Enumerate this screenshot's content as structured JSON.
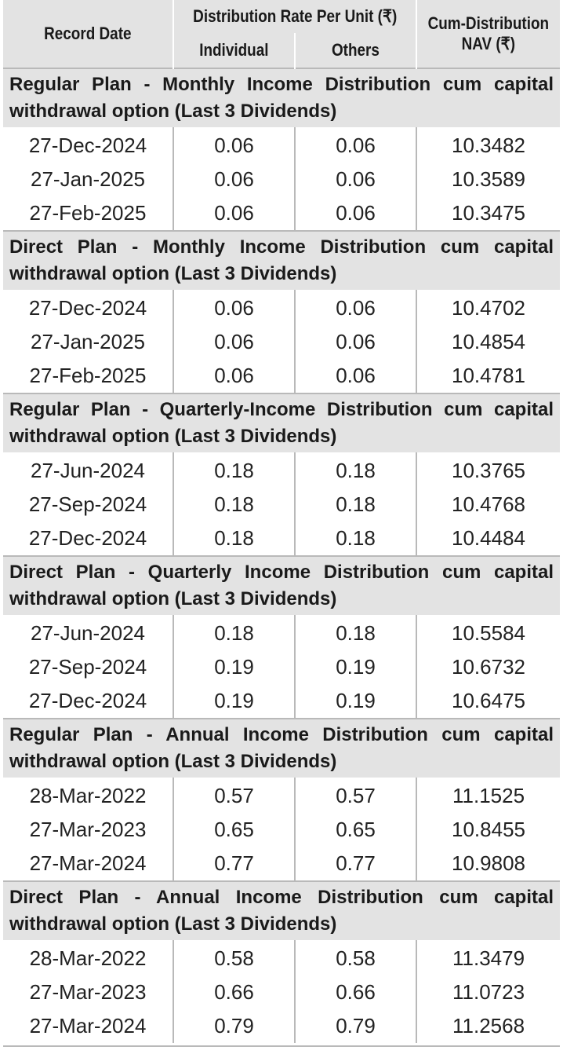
{
  "header": {
    "record_date": "Record Date",
    "rate_group": "Distribution Rate Per Unit  (₹)",
    "individual": "Individual",
    "others": "Others",
    "nav_line1": "Cum-Distribution",
    "nav_line2": "NAV (₹)"
  },
  "sections": [
    {
      "title": "Regular Plan - Monthly Income Distribution cum capital withdrawal option (Last 3 Dividends)",
      "rows": [
        {
          "date": "27-Dec-2024",
          "individual": "0.06",
          "others": "0.06",
          "nav": "10.3482"
        },
        {
          "date": "27-Jan-2025",
          "individual": "0.06",
          "others": "0.06",
          "nav": "10.3589"
        },
        {
          "date": "27-Feb-2025",
          "individual": "0.06",
          "others": "0.06",
          "nav": "10.3475"
        }
      ]
    },
    {
      "title": "Direct Plan - Monthly Income Distribution cum capital withdrawal option (Last 3 Dividends)",
      "rows": [
        {
          "date": "27-Dec-2024",
          "individual": "0.06",
          "others": "0.06",
          "nav": "10.4702"
        },
        {
          "date": "27-Jan-2025",
          "individual": "0.06",
          "others": "0.06",
          "nav": "10.4854"
        },
        {
          "date": "27-Feb-2025",
          "individual": "0.06",
          "others": "0.06",
          "nav": "10.4781"
        }
      ]
    },
    {
      "title": "Regular Plan - Quarterly-Income Distribution cum capital withdrawal option (Last 3 Dividends)",
      "rows": [
        {
          "date": "27-Jun-2024",
          "individual": "0.18",
          "others": "0.18",
          "nav": "10.3765"
        },
        {
          "date": "27-Sep-2024",
          "individual": "0.18",
          "others": "0.18",
          "nav": "10.4768"
        },
        {
          "date": "27-Dec-2024",
          "individual": "0.18",
          "others": "0.18",
          "nav": "10.4484"
        }
      ]
    },
    {
      "title": "Direct Plan - Quarterly Income Distribution cum capital withdrawal option (Last 3 Dividends)",
      "rows": [
        {
          "date": "27-Jun-2024",
          "individual": "0.18",
          "others": "0.18",
          "nav": "10.5584"
        },
        {
          "date": "27-Sep-2024",
          "individual": "0.19",
          "others": "0.19",
          "nav": "10.6732"
        },
        {
          "date": "27-Dec-2024",
          "individual": "0.19",
          "others": "0.19",
          "nav": "10.6475"
        }
      ]
    },
    {
      "title": "Regular Plan - Annual Income Distribution cum capital withdrawal option (Last 3 Dividends)",
      "rows": [
        {
          "date": "28-Mar-2022",
          "individual": "0.57",
          "others": "0.57",
          "nav": "11.1525"
        },
        {
          "date": "27-Mar-2023",
          "individual": "0.65",
          "others": "0.65",
          "nav": "10.8455"
        },
        {
          "date": "27-Mar-2024",
          "individual": "0.77",
          "others": "0.77",
          "nav": "10.9808"
        }
      ]
    },
    {
      "title": "Direct Plan - Annual Income Distribution cum capital withdrawal option (Last 3 Dividends)",
      "rows": [
        {
          "date": "28-Mar-2022",
          "individual": "0.58",
          "others": "0.58",
          "nav": "11.3479"
        },
        {
          "date": "27-Mar-2023",
          "individual": "0.66",
          "others": "0.66",
          "nav": "11.0723"
        },
        {
          "date": "27-Mar-2024",
          "individual": "0.79",
          "others": "0.79",
          "nav": "11.2568"
        }
      ]
    }
  ]
}
